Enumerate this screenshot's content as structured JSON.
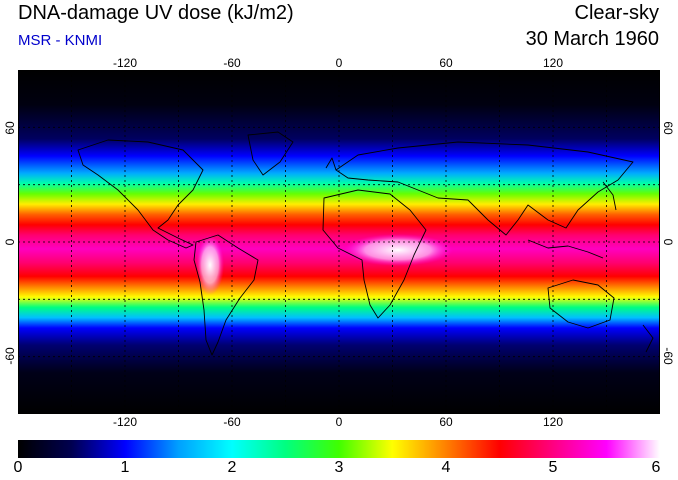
{
  "header": {
    "title": "DNA-damage UV dose (kJ/m2)",
    "subtitle": "MSR - KNMI",
    "condition": "Clear-sky",
    "date": "30 March 1960"
  },
  "map": {
    "lon_ticks": [
      "-120",
      "-60",
      "0",
      "60",
      "120"
    ],
    "lat_ticks_left": [
      "60",
      "0",
      "-60"
    ],
    "lat_ticks_right": [
      "60",
      "0",
      "-60"
    ],
    "lon_values": [
      -120,
      -60,
      0,
      60,
      120
    ],
    "lat_values": [
      60,
      0,
      -60
    ],
    "lon_range": [
      -180,
      180
    ],
    "lat_range": [
      -90,
      90
    ],
    "grid": "dashed, every 30 degrees"
  },
  "colorbar": {
    "labels": [
      "0",
      "1",
      "2",
      "3",
      "4",
      "5",
      "6"
    ],
    "min": 0,
    "max": 6,
    "stops": [
      "#000000",
      "#000050",
      "#0000ff",
      "#00a0ff",
      "#00ffff",
      "#00ff80",
      "#40ff00",
      "#ffff00",
      "#ff8000",
      "#ff0000",
      "#ff0080",
      "#ff00ff",
      "#ffffff"
    ]
  }
}
